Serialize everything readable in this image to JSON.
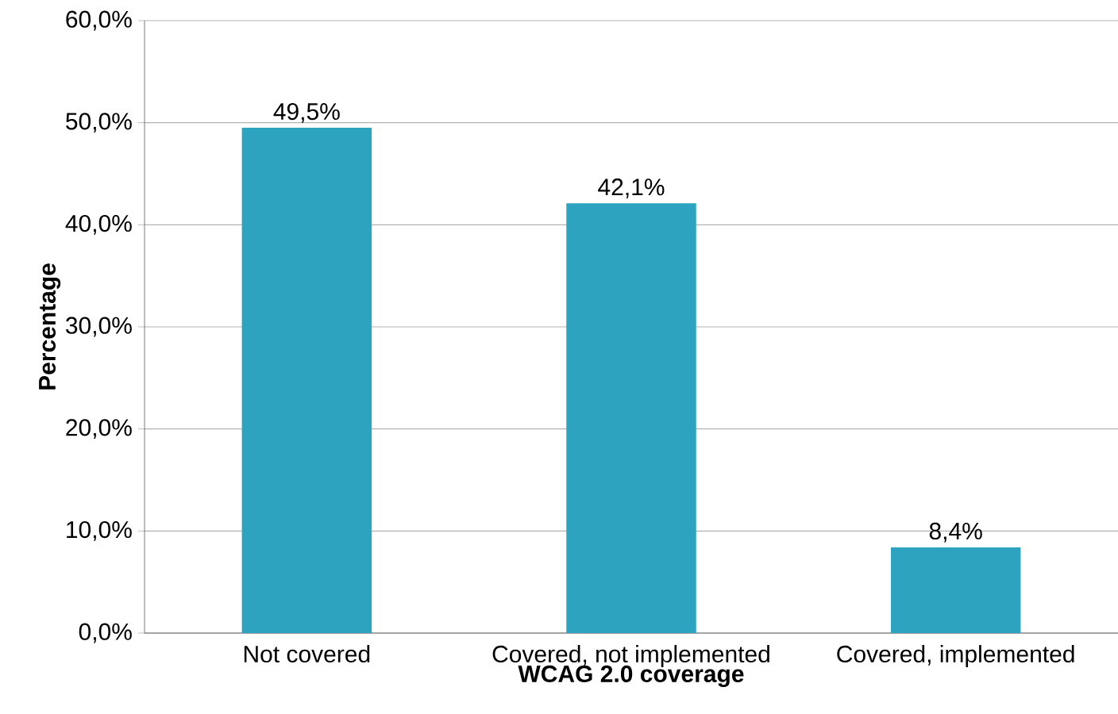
{
  "chart_data": {
    "type": "bar",
    "xlabel": "WCAG 2.0 coverage",
    "ylabel": "Percentage",
    "categories": [
      "Not covered",
      "Covered, not implemented",
      "Covered, implemented"
    ],
    "values": [
      49.5,
      42.1,
      8.4
    ],
    "value_labels": [
      "49,5%",
      "42,1%",
      "8,4%"
    ],
    "color": "#2ea3bf",
    "ylim": [
      0,
      60
    ],
    "yticks": [
      {
        "value": 0,
        "label": "0,0%"
      },
      {
        "value": 10,
        "label": "10,0%"
      },
      {
        "value": 20,
        "label": "20,0%"
      },
      {
        "value": 30,
        "label": "30,0%"
      },
      {
        "value": 40,
        "label": "40,0%"
      },
      {
        "value": 50,
        "label": "50,0%"
      },
      {
        "value": 60,
        "label": "60,0%"
      }
    ],
    "grid": "y"
  }
}
